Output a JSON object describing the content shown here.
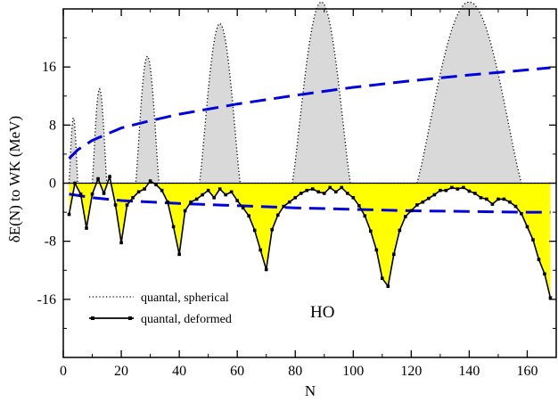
{
  "chart_data": {
    "type": "line",
    "title": "",
    "xlabel": "N",
    "ylabel": "δE(N)  to WK   (MeV)",
    "xlim": [
      0,
      170
    ],
    "ylim": [
      -24,
      24
    ],
    "x_ticks": [
      "0",
      "20",
      "40",
      "60",
      "80",
      "100",
      "120",
      "140",
      "160"
    ],
    "y_ticks": [
      "-16",
      "-8",
      "0",
      "8",
      "16"
    ],
    "grid": false,
    "legend_position": "bottom-left",
    "annotation": "HO",
    "colors": {
      "spherical": "#000000",
      "deformed": "#000000",
      "envelope": "#0000dd",
      "gray_fill": "#d9d9d9",
      "yellow_fill": "#ffff00"
    },
    "series": [
      {
        "name": "quantal, spherical",
        "style": "dotted",
        "x": [
          2,
          4,
          5,
          8,
          10,
          13,
          15,
          20,
          25,
          29,
          33,
          40,
          47,
          54,
          61,
          70,
          79,
          89,
          99,
          112,
          122,
          140,
          158,
          168
        ],
        "y": [
          0,
          9,
          0,
          0,
          0,
          13,
          0,
          0,
          0,
          17.5,
          0,
          0,
          0,
          22,
          0,
          0,
          0,
          25,
          0,
          0,
          0,
          25,
          0,
          0
        ]
      },
      {
        "name": "quantal, deformed",
        "style": "solid-square",
        "x": [
          2,
          4,
          6,
          8,
          10,
          12,
          14,
          16,
          18,
          20,
          22,
          24,
          26,
          28,
          30,
          32,
          34,
          36,
          38,
          40,
          42,
          44,
          46,
          48,
          50,
          52,
          54,
          56,
          58,
          60,
          62,
          64,
          66,
          68,
          70,
          72,
          74,
          76,
          78,
          80,
          82,
          84,
          86,
          88,
          90,
          92,
          94,
          96,
          98,
          100,
          102,
          104,
          106,
          108,
          110,
          112,
          114,
          116,
          118,
          120,
          122,
          124,
          126,
          128,
          130,
          132,
          134,
          136,
          138,
          140,
          142,
          144,
          146,
          148,
          150,
          152,
          154,
          156,
          158,
          160,
          162,
          164,
          166,
          168
        ],
        "y": [
          -4.3,
          0,
          -1.5,
          -6.2,
          -1.5,
          0.6,
          -1.4,
          0.9,
          -3.0,
          -8.2,
          -3.0,
          -2.0,
          -1.2,
          -0.8,
          0.3,
          -0.2,
          -1.0,
          -2.6,
          -6.0,
          -9.8,
          -3.8,
          -2.6,
          -2.2,
          -1.6,
          -1.0,
          -2.0,
          -0.8,
          -1.6,
          -1.2,
          -2.4,
          -3.4,
          -4.5,
          -6.5,
          -9.2,
          -11.9,
          -6.4,
          -4.4,
          -3.2,
          -2.6,
          -2.0,
          -1.4,
          -1.0,
          -0.8,
          -1.2,
          -1.4,
          -0.6,
          -1.2,
          -0.6,
          -1.4,
          -2.0,
          -3.1,
          -4.5,
          -6.6,
          -9.2,
          -13.1,
          -14.2,
          -9.8,
          -6.5,
          -4.6,
          -3.8,
          -3.0,
          -2.6,
          -2.1,
          -1.6,
          -1.0,
          -1.0,
          -0.6,
          -0.8,
          -0.6,
          -1.1,
          -1.4,
          -2.0,
          -2.2,
          -2.9,
          -2.2,
          -2.2,
          -2.6,
          -3.2,
          -4.2,
          -6.0,
          -7.8,
          -10.5,
          -12.5,
          -15.8
        ]
      },
      {
        "name": "",
        "style": "dashed-upper-envelope",
        "x": [
          2,
          5,
          10,
          20,
          30,
          40,
          60,
          80,
          100,
          120,
          140,
          160,
          168
        ],
        "y": [
          3.4,
          4.6,
          5.9,
          7.6,
          8.6,
          9.5,
          10.9,
          12.1,
          13.2,
          14.1,
          14.9,
          15.6,
          15.9
        ]
      },
      {
        "name": "",
        "style": "dashed-lower-envelope",
        "x": [
          2,
          10,
          20,
          40,
          60,
          80,
          100,
          120,
          140,
          160,
          168
        ],
        "y": [
          -1.5,
          -2.0,
          -2.4,
          -2.8,
          -3.1,
          -3.4,
          -3.6,
          -3.8,
          -3.9,
          -4.0,
          -4.0
        ]
      }
    ]
  }
}
